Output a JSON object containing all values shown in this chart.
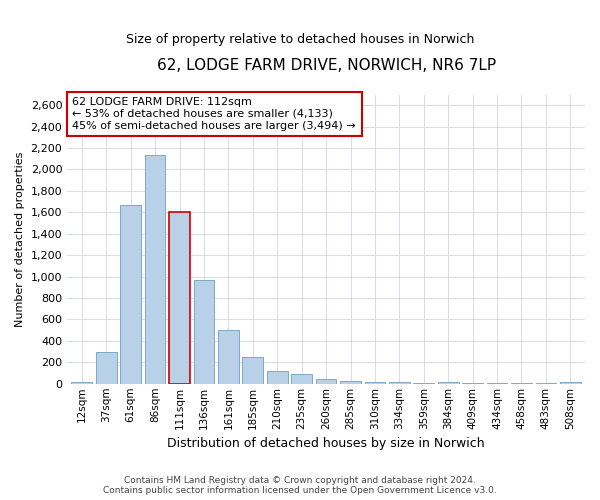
{
  "title": "62, LODGE FARM DRIVE, NORWICH, NR6 7LP",
  "subtitle": "Size of property relative to detached houses in Norwich",
  "xlabel": "Distribution of detached houses by size in Norwich",
  "ylabel": "Number of detached properties",
  "categories": [
    "12sqm",
    "37sqm",
    "61sqm",
    "86sqm",
    "111sqm",
    "136sqm",
    "161sqm",
    "185sqm",
    "210sqm",
    "235sqm",
    "260sqm",
    "285sqm",
    "310sqm",
    "334sqm",
    "359sqm",
    "384sqm",
    "409sqm",
    "434sqm",
    "458sqm",
    "483sqm",
    "508sqm"
  ],
  "values": [
    20,
    295,
    1670,
    2135,
    1600,
    970,
    505,
    250,
    120,
    95,
    40,
    30,
    20,
    15,
    10,
    20,
    5,
    5,
    5,
    5,
    15
  ],
  "bar_color": "#b8d0e8",
  "bar_edge_color": "#7aaac8",
  "highlight_index": 4,
  "highlight_bar_edge_color": "#cc0000",
  "annotation_text": "62 LODGE FARM DRIVE: 112sqm\n← 53% of detached houses are smaller (4,133)\n45% of semi-detached houses are larger (3,494) →",
  "annotation_box_color": "white",
  "annotation_box_edge_color": "#cc0000",
  "ylim": [
    0,
    2700
  ],
  "yticks": [
    0,
    200,
    400,
    600,
    800,
    1000,
    1200,
    1400,
    1600,
    1800,
    2000,
    2200,
    2400,
    2600
  ],
  "footer_line1": "Contains HM Land Registry data © Crown copyright and database right 2024.",
  "footer_line2": "Contains public sector information licensed under the Open Government Licence v3.0.",
  "bg_color": "#ffffff",
  "plot_bg_color": "#ffffff",
  "grid_color": "#d0d8e0"
}
